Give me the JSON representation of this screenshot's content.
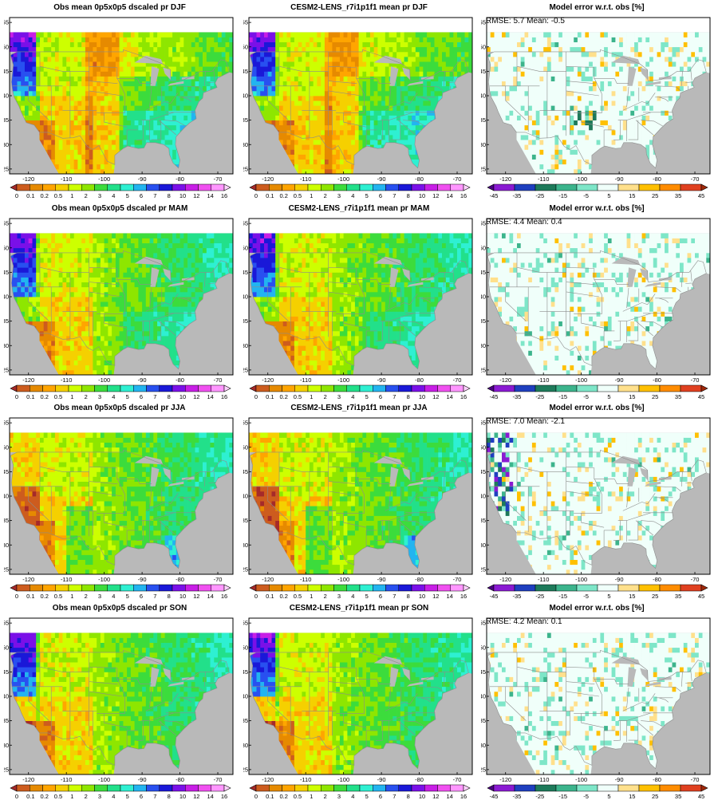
{
  "figure": {
    "rows": [
      {
        "season": "DJF",
        "obs_title": "Obs mean 0p5x0p5 dscaled pr DJF",
        "model_title": "CESM2-LENS_r7i1p1f1 mean pr DJF",
        "error_title": "Model error w.r.t. obs [%]",
        "error_stats": "RMSE: 5.7  Mean: -0.5"
      },
      {
        "season": "MAM",
        "obs_title": "Obs mean 0p5x0p5 dscaled pr MAM",
        "model_title": "CESM2-LENS_r7i1p1f1 mean pr MAM",
        "error_title": "Model error w.r.t. obs [%]",
        "error_stats": "RMSE: 4.4  Mean: 0.4"
      },
      {
        "season": "JJA",
        "obs_title": "Obs mean 0p5x0p5 dscaled pr JJA",
        "model_title": "CESM2-LENS_r7i1p1f1 mean pr JJA",
        "error_title": "Model error w.r.t. obs [%]",
        "error_stats": "RMSE: 7.0  Mean: -2.1"
      },
      {
        "season": "SON",
        "obs_title": "Obs mean 0p5x0p5 dscaled pr SON",
        "model_title": "CESM2-LENS_r7i1p1f1 mean pr SON",
        "error_title": "Model error w.r.t. obs [%]",
        "error_stats": "RMSE: 4.2  Mean: 0.1"
      }
    ],
    "axes": {
      "lat_ticks": [
        "25",
        "30",
        "35",
        "40",
        "45",
        "50",
        "55"
      ],
      "lon_ticks": [
        "-120",
        "-110",
        "-100",
        "-90",
        "-80",
        "-70"
      ]
    },
    "precip_colorbar": {
      "labels": [
        "0",
        "0.1",
        "0.2",
        "0.5",
        "1",
        "2",
        "3",
        "4",
        "5",
        "6",
        "7",
        "8",
        "10",
        "12",
        "14",
        "16"
      ],
      "colors": [
        "#a52a2a",
        "#cd5c1e",
        "#e68a00",
        "#ffa500",
        "#f5d000",
        "#cdff00",
        "#8ee600",
        "#3cdc3c",
        "#22e08a",
        "#2ef0d2",
        "#22b4f0",
        "#2850f0",
        "#1a18d8",
        "#7a10e8",
        "#c81ee6",
        "#f050f0",
        "#ff96ff",
        "#ffd2ff"
      ]
    },
    "error_colorbar": {
      "labels": [
        "-45",
        "-35",
        "-25",
        "-15",
        "-5",
        "5",
        "15",
        "25",
        "35",
        "45"
      ],
      "colors": [
        "#4b0082",
        "#8a1ad2",
        "#1f3fbf",
        "#1e7a5a",
        "#3cb48c",
        "#7ee6c8",
        "#f0fffa",
        "#ffe08c",
        "#ffc000",
        "#ff8c00",
        "#e04020",
        "#a0280a"
      ]
    },
    "colors": {
      "land_fill_base": "#8ee600",
      "ocean_gray": "#b9b9b9",
      "border_gray": "#8c8c8c",
      "error_land": "#f0fffa"
    }
  }
}
